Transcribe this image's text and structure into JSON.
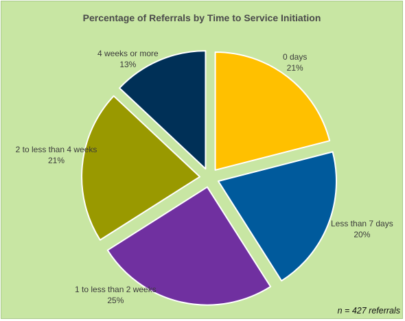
{
  "chart_data": {
    "type": "pie",
    "title": "Percentage of Referrals by Time to Service Initiation",
    "exploded": true,
    "start_angle_deg": 0,
    "direction": "clockwise",
    "slices": [
      {
        "label": "0 days",
        "value": 21,
        "value_label": "21%",
        "color": "#FFC000"
      },
      {
        "label": "Less than 7 days",
        "value": 20,
        "value_label": "20%",
        "color": "#005A9C"
      },
      {
        "label": "1 to less than 2 weeks",
        "value": 25,
        "value_label": "25%",
        "color": "#7030A0"
      },
      {
        "label": "2 to less than 4 weeks",
        "value": 21,
        "value_label": "21%",
        "color": "#999900"
      },
      {
        "label": "4 weeks or more",
        "value": 13,
        "value_label": "13%",
        "color": "#003057"
      }
    ],
    "footnote": "n = 427 referrals",
    "background": "#C8E6A3"
  }
}
